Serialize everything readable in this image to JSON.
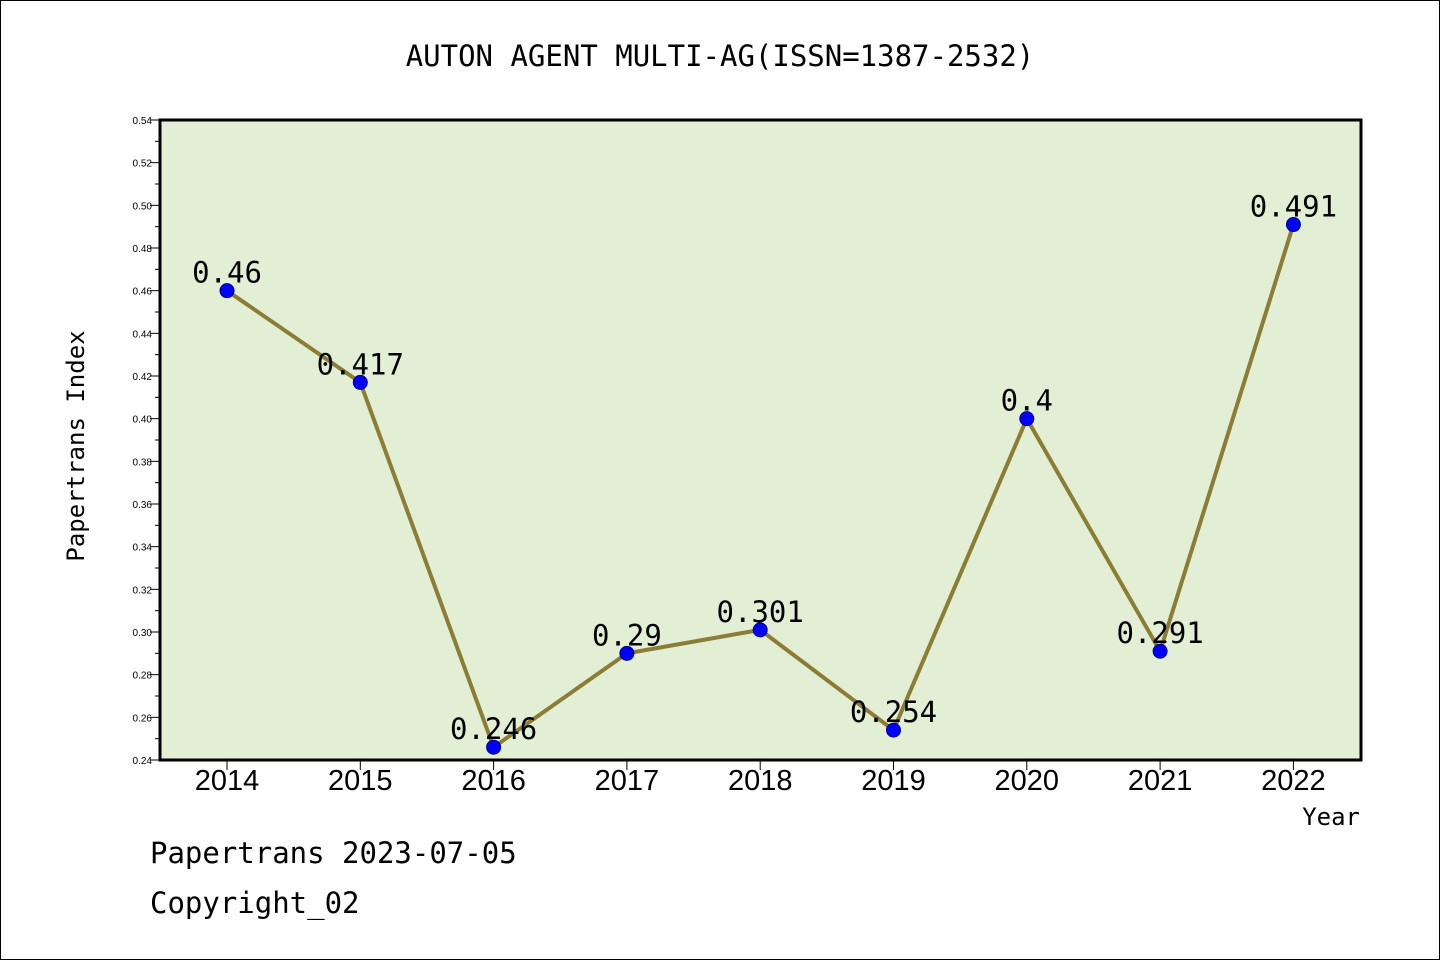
{
  "chart_data": {
    "type": "line",
    "title": "AUTON AGENT MULTI-AG(ISSN=1387-2532)",
    "xlabel": "Year",
    "ylabel": "Papertrans Index",
    "categories": [
      "2014",
      "2015",
      "2016",
      "2017",
      "2018",
      "2019",
      "2020",
      "2021",
      "2022"
    ],
    "series": [
      {
        "values": [
          0.46,
          0.417,
          0.246,
          0.29,
          0.301,
          0.254,
          0.4,
          0.291,
          0.491
        ],
        "labels": [
          "0.46",
          "0.417",
          "0.246",
          "0.29",
          "0.301",
          "0.254",
          "0.4",
          "0.291",
          "0.491"
        ]
      }
    ],
    "ylim": [
      0.24,
      0.54
    ],
    "yticks": [
      "0.24",
      "0.26",
      "0.28",
      "0.30",
      "0.32",
      "0.34",
      "0.36",
      "0.38",
      "0.40",
      "0.42",
      "0.44",
      "0.46",
      "0.48",
      "0.50",
      "0.52",
      "0.54"
    ],
    "grid": false,
    "legend": "none",
    "colors": {
      "plot_background": "#e2efd5",
      "line": "#8b7d33",
      "marker": "#0000ff",
      "marker_edge": "#000080"
    }
  },
  "footer": {
    "date_text": "Papertrans 2023-07-05",
    "copyright_text": "Copyright_02"
  }
}
